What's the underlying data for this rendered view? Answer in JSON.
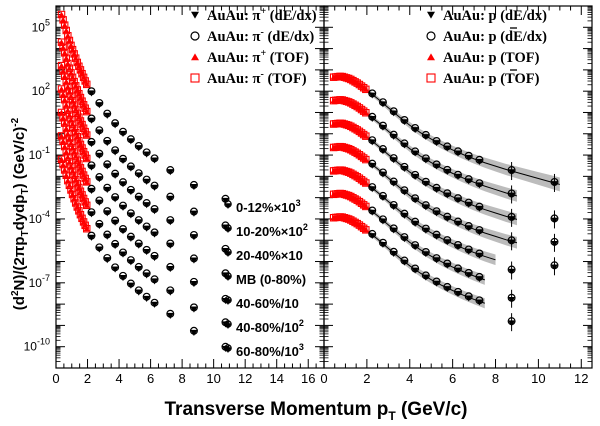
{
  "figure": {
    "xlabel_main": "Transverse Momentum p",
    "xlabel_sub": "T",
    "xlabel_unit": " (GeV/c)",
    "ylabel_a": "(d",
    "ylabel_b": "N)/(2πp",
    "ylabel_c": "dydp",
    "ylabel_d": ") (GeV/c)",
    "ylabel_sup2": "2",
    "ylabel_subT": "T",
    "ylabel_exp": "-2"
  },
  "colors": {
    "tof": "#ff0000",
    "dedx": "#000000",
    "band": "#b0b0b0"
  },
  "chart_data": [
    {
      "type": "scatter",
      "panel": "pion",
      "xlim": [
        0,
        17
      ],
      "ylim_log10": [
        -11,
        6
      ],
      "log_y": true,
      "x_ticks": [
        "0",
        "2",
        "4",
        "6",
        "8",
        "10",
        "12",
        "14",
        "16"
      ],
      "y_ticks": [
        "10^5",
        "10^2",
        "10^-1",
        "10^-4",
        "10^-7",
        "10^-10"
      ],
      "legend": [
        {
          "symbol": "down-triangle",
          "color": "#000000",
          "text": "AuAu: π",
          "sup": "+",
          "tail": " (dE/dx)"
        },
        {
          "symbol": "open-circle",
          "color": "#000000",
          "text": "AuAu: π",
          "sup": "-",
          "tail": " (dE/dx)"
        },
        {
          "symbol": "up-triangle",
          "color": "#ff0000",
          "text": "AuAu: π",
          "sup": "+",
          "tail": " (TOF)"
        },
        {
          "symbol": "open-square",
          "color": "#ff0000",
          "text": "AuAu: π",
          "sup": "-",
          "tail": " (TOF)"
        }
      ],
      "centrality_labels": [
        {
          "text": "0-12%×10",
          "sup": "3"
        },
        {
          "text": "10-20%×10",
          "sup": "2"
        },
        {
          "text": "20-40%×10",
          "sup": ""
        },
        {
          "text": "MB (0-80%)",
          "sup": ""
        },
        {
          "text": "40-60%/10",
          "sup": ""
        },
        {
          "text": "40-80%/10",
          "sup": "2"
        },
        {
          "text": "60-80%/10",
          "sup": "3"
        }
      ],
      "series": [
        {
          "tof_x": [
            0.35,
            0.45,
            0.55,
            0.65,
            0.75,
            0.85,
            0.95,
            1.05,
            1.15,
            1.25,
            1.35,
            1.45,
            1.55,
            1.65,
            1.75,
            1.85,
            1.95
          ],
          "tof_y": [
            5.6,
            5.35,
            5.1,
            4.85,
            4.6,
            4.38,
            4.15,
            3.95,
            3.75,
            3.55,
            3.35,
            3.17,
            3.0,
            2.82,
            2.65,
            2.48,
            2.32
          ],
          "dedx_x": [
            2.25,
            2.75,
            3.25,
            3.75,
            4.25,
            4.75,
            5.25,
            5.75,
            6.25,
            7.25,
            8.75,
            10.75
          ],
          "dedx_y": [
            1.95,
            1.4,
            0.9,
            0.45,
            0.05,
            -0.3,
            -0.62,
            -0.92,
            -1.2,
            -1.75,
            -2.45,
            -3.1
          ]
        },
        {
          "tof_x": [
            0.35,
            0.45,
            0.55,
            0.65,
            0.75,
            0.85,
            0.95,
            1.05,
            1.15,
            1.25,
            1.35,
            1.45,
            1.55,
            1.65,
            1.75,
            1.85,
            1.95
          ],
          "tof_y": [
            4.3,
            4.05,
            3.8,
            3.55,
            3.3,
            3.08,
            2.86,
            2.65,
            2.45,
            2.25,
            2.06,
            1.88,
            1.7,
            1.53,
            1.36,
            1.2,
            1.04
          ],
          "dedx_x": [
            2.25,
            2.75,
            3.25,
            3.75,
            4.25,
            4.75,
            5.25,
            5.75,
            6.25,
            7.25,
            8.75,
            10.75
          ],
          "dedx_y": [
            0.67,
            0.12,
            -0.38,
            -0.82,
            -1.22,
            -1.58,
            -1.9,
            -2.2,
            -2.48,
            -3.0,
            -3.7,
            -4.35
          ]
        },
        {
          "tof_x": [
            0.35,
            0.45,
            0.55,
            0.65,
            0.75,
            0.85,
            0.95,
            1.05,
            1.15,
            1.25,
            1.35,
            1.45,
            1.55,
            1.65,
            1.75,
            1.85,
            1.95
          ],
          "tof_y": [
            3.2,
            2.95,
            2.7,
            2.45,
            2.2,
            1.98,
            1.76,
            1.55,
            1.35,
            1.15,
            0.96,
            0.78,
            0.6,
            0.43,
            0.26,
            0.1,
            -0.06
          ],
          "dedx_x": [
            2.25,
            2.75,
            3.25,
            3.75,
            4.25,
            4.75,
            5.25,
            5.75,
            6.25,
            7.25,
            8.75,
            10.75
          ],
          "dedx_y": [
            -0.43,
            -0.98,
            -1.48,
            -1.92,
            -2.32,
            -2.68,
            -3.0,
            -3.3,
            -3.58,
            -4.1,
            -4.8,
            -5.45
          ]
        },
        {
          "tof_x": [
            0.35,
            0.45,
            0.55,
            0.65,
            0.75,
            0.85,
            0.95,
            1.05,
            1.15,
            1.25,
            1.35,
            1.45,
            1.55,
            1.65,
            1.75,
            1.85,
            1.95
          ],
          "tof_y": [
            2.1,
            1.85,
            1.6,
            1.35,
            1.1,
            0.88,
            0.66,
            0.45,
            0.25,
            0.05,
            -0.14,
            -0.32,
            -0.5,
            -0.67,
            -0.84,
            -1.0,
            -1.16
          ],
          "dedx_x": [
            2.25,
            2.75,
            3.25,
            3.75,
            4.25,
            4.75,
            5.25,
            5.75,
            6.25,
            7.25,
            8.75,
            10.75
          ],
          "dedx_y": [
            -1.53,
            -2.08,
            -2.58,
            -3.02,
            -3.42,
            -3.78,
            -4.1,
            -4.4,
            -4.68,
            -5.2,
            -5.9,
            -6.6
          ]
        },
        {
          "tof_x": [
            0.35,
            0.45,
            0.55,
            0.65,
            0.75,
            0.85,
            0.95,
            1.05,
            1.15,
            1.25,
            1.35,
            1.45,
            1.55,
            1.65,
            1.75,
            1.85,
            1.95
          ],
          "tof_y": [
            1.0,
            0.75,
            0.5,
            0.25,
            0.0,
            -0.22,
            -0.44,
            -0.65,
            -0.85,
            -1.05,
            -1.24,
            -1.42,
            -1.6,
            -1.77,
            -1.94,
            -2.1,
            -2.26
          ],
          "dedx_x": [
            2.25,
            2.75,
            3.25,
            3.75,
            4.25,
            4.75,
            5.25,
            5.75,
            6.25,
            7.25,
            8.75,
            10.75
          ],
          "dedx_y": [
            -2.63,
            -3.18,
            -3.68,
            -4.12,
            -4.52,
            -4.88,
            -5.2,
            -5.5,
            -5.78,
            -6.3,
            -7.0,
            -7.8
          ]
        },
        {
          "tof_x": [
            0.35,
            0.45,
            0.55,
            0.65,
            0.75,
            0.85,
            0.95,
            1.05,
            1.15,
            1.25,
            1.35,
            1.45,
            1.55,
            1.65,
            1.75,
            1.85,
            1.95
          ],
          "tof_y": [
            -0.1,
            -0.35,
            -0.6,
            -0.85,
            -1.1,
            -1.32,
            -1.54,
            -1.75,
            -1.95,
            -2.15,
            -2.34,
            -2.52,
            -2.7,
            -2.87,
            -3.04,
            -3.2,
            -3.36
          ],
          "dedx_x": [
            2.25,
            2.75,
            3.25,
            3.75,
            4.25,
            4.75,
            5.25,
            5.75,
            6.25,
            7.25,
            8.75,
            10.75
          ],
          "dedx_y": [
            -3.73,
            -4.28,
            -4.78,
            -5.22,
            -5.62,
            -5.98,
            -6.3,
            -6.6,
            -6.88,
            -7.4,
            -8.2,
            -8.9
          ]
        },
        {
          "tof_x": [
            0.35,
            0.45,
            0.55,
            0.65,
            0.75,
            0.85,
            0.95,
            1.05,
            1.15,
            1.25,
            1.35,
            1.45,
            1.55,
            1.65,
            1.75,
            1.85,
            1.95
          ],
          "tof_y": [
            -1.2,
            -1.45,
            -1.7,
            -1.95,
            -2.2,
            -2.42,
            -2.64,
            -2.85,
            -3.05,
            -3.25,
            -3.44,
            -3.62,
            -3.8,
            -3.97,
            -4.14,
            -4.3,
            -4.46
          ],
          "dedx_x": [
            2.25,
            2.75,
            3.25,
            3.75,
            4.25,
            4.75,
            5.25,
            5.75,
            6.25,
            7.25,
            8.75,
            10.75
          ],
          "dedx_y": [
            -4.83,
            -5.38,
            -5.88,
            -6.32,
            -6.72,
            -7.08,
            -7.4,
            -7.7,
            -7.98,
            -8.5,
            -9.3,
            -10.05
          ]
        }
      ]
    },
    {
      "type": "scatter",
      "panel": "proton",
      "xlim": [
        0,
        12.5
      ],
      "ylim_log10": [
        -11,
        6
      ],
      "log_y": true,
      "x_ticks": [
        "0",
        "2",
        "4",
        "6",
        "8",
        "10",
        "12"
      ],
      "legend": [
        {
          "symbol": "down-triangle",
          "color": "#000000",
          "text": "AuAu: p",
          "tail": " (dE/dx)",
          "bar": false
        },
        {
          "symbol": "open-circle",
          "color": "#000000",
          "text": "AuAu: p",
          "tail": " (dE/dx)",
          "bar": true
        },
        {
          "symbol": "up-triangle",
          "color": "#ff0000",
          "text": "AuAu: p",
          "tail": " (TOF)",
          "bar": false
        },
        {
          "symbol": "open-square",
          "color": "#ff0000",
          "text": "AuAu: p",
          "tail": " (TOF)",
          "bar": true
        }
      ],
      "curves": [
        {
          "x": [
            0.4,
            0.8,
            1.2,
            1.6,
            2.0,
            2.5,
            3.0,
            3.5,
            4.0,
            4.5,
            5.0,
            5.5,
            6.0,
            6.5,
            7.0,
            7.5,
            8.0,
            8.5,
            9.0,
            9.5,
            10.0,
            10.5,
            11.0
          ],
          "y": [
            2.65,
            2.7,
            2.58,
            2.35,
            2.05,
            1.65,
            1.22,
            0.8,
            0.4,
            0.05,
            -0.25,
            -0.52,
            -0.76,
            -0.98,
            -1.18,
            -1.36,
            -1.52,
            -1.68,
            -1.82,
            -1.96,
            -2.1,
            -2.24,
            -2.38
          ]
        },
        {
          "x": [
            0.4,
            0.8,
            1.2,
            1.6,
            2.0,
            2.5,
            3.0,
            3.5,
            4.0,
            4.5,
            5.0,
            5.5,
            6.0,
            6.5,
            7.0,
            7.5,
            8.0,
            8.5,
            9.0
          ],
          "y": [
            1.55,
            1.6,
            1.48,
            1.25,
            0.95,
            0.55,
            0.12,
            -0.3,
            -0.7,
            -1.05,
            -1.35,
            -1.62,
            -1.86,
            -2.08,
            -2.28,
            -2.46,
            -2.62,
            -2.78,
            -2.92
          ]
        },
        {
          "x": [
            0.4,
            0.8,
            1.2,
            1.6,
            2.0,
            2.5,
            3.0,
            3.5,
            4.0,
            4.5,
            5.0,
            5.5,
            6.0,
            6.5,
            7.0,
            7.5,
            8.0,
            8.5,
            9.0
          ],
          "y": [
            0.45,
            0.5,
            0.38,
            0.15,
            -0.15,
            -0.55,
            -0.98,
            -1.4,
            -1.8,
            -2.15,
            -2.45,
            -2.72,
            -2.96,
            -3.18,
            -3.38,
            -3.56,
            -3.72,
            -3.88,
            -4.02
          ]
        },
        {
          "x": [
            0.4,
            0.8,
            1.2,
            1.6,
            2.0,
            2.5,
            3.0,
            3.5,
            4.0,
            4.5,
            5.0,
            5.5,
            6.0,
            6.5,
            7.0,
            7.5,
            8.0,
            8.5,
            9.0
          ],
          "y": [
            -0.65,
            -0.6,
            -0.72,
            -0.95,
            -1.25,
            -1.65,
            -2.08,
            -2.5,
            -2.9,
            -3.25,
            -3.55,
            -3.82,
            -4.06,
            -4.28,
            -4.48,
            -4.66,
            -4.82,
            -4.98,
            -5.12
          ]
        },
        {
          "x": [
            0.4,
            0.8,
            1.2,
            1.6,
            2.0,
            2.5,
            3.0,
            3.5,
            4.0,
            4.5,
            5.0,
            5.5,
            6.0,
            6.5,
            7.0,
            7.5,
            8.0
          ],
          "y": [
            -1.75,
            -1.7,
            -1.82,
            -2.05,
            -2.35,
            -2.75,
            -3.18,
            -3.6,
            -4.0,
            -4.35,
            -4.65,
            -4.92,
            -5.16,
            -5.38,
            -5.58,
            -5.76,
            -5.92
          ]
        },
        {
          "x": [
            0.4,
            0.8,
            1.2,
            1.6,
            2.0,
            2.5,
            3.0,
            3.5,
            4.0,
            4.5,
            5.0,
            5.5,
            6.0,
            6.5,
            7.0,
            7.5
          ],
          "y": [
            -2.85,
            -2.8,
            -2.92,
            -3.15,
            -3.45,
            -3.85,
            -4.28,
            -4.7,
            -5.1,
            -5.45,
            -5.75,
            -6.02,
            -6.26,
            -6.48,
            -6.68,
            -6.86
          ]
        },
        {
          "x": [
            0.4,
            0.8,
            1.2,
            1.6,
            2.0,
            2.5,
            3.0,
            3.5,
            4.0,
            4.5,
            5.0,
            5.5,
            6.0,
            6.5,
            7.0,
            7.5
          ],
          "y": [
            -3.95,
            -3.9,
            -4.02,
            -4.25,
            -4.55,
            -4.95,
            -5.38,
            -5.8,
            -6.2,
            -6.55,
            -6.85,
            -7.12,
            -7.36,
            -7.58,
            -7.78,
            -7.96
          ]
        }
      ],
      "tof_x": [
        0.45,
        0.55,
        0.65,
        0.75,
        0.85,
        0.95,
        1.05,
        1.15,
        1.25,
        1.35,
        1.45,
        1.55,
        1.65,
        1.75,
        1.85,
        1.95
      ],
      "dedx_x": [
        2.25,
        2.75,
        3.25,
        3.75,
        4.25,
        4.75,
        5.25,
        5.75,
        6.25,
        6.75,
        7.25,
        8.75,
        10.75
      ]
    }
  ]
}
